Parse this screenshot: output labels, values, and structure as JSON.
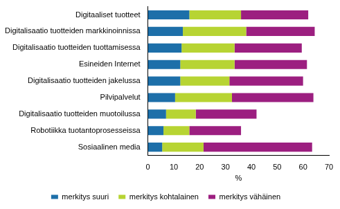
{
  "chart_data": {
    "type": "bar",
    "orientation": "horizontal",
    "stacked": true,
    "grid": false,
    "legend": "bottom",
    "xlabel": "%",
    "categories": [
      "Digitaaliset tuotteet",
      "Digitalisaatio tuotteiden markkinoinnissa",
      "Digitalisaatio tuotteiden tuottamisessa",
      "Esineiden Internet",
      "Digitalisaatio tuotteiden jakelussa",
      "Pilvipalvelut",
      "Digitalisaatio tuotteiden muotoilussa",
      "Robotiikka tuotantoprosesseissa",
      "Sosiaalinen media"
    ],
    "series": [
      {
        "name": "merkitys suuri",
        "color": "#1d6fa9",
        "values": [
          16,
          13.5,
          13,
          12.5,
          12.5,
          10.5,
          7,
          6,
          5.5
        ]
      },
      {
        "name": "merkitys kohtalainen",
        "color": "#b7d433",
        "values": [
          20,
          24.5,
          20.5,
          21,
          19,
          22,
          11.5,
          10,
          16
        ]
      },
      {
        "name": "merkitys vähäinen",
        "color": "#9c1f80",
        "values": [
          26,
          26.5,
          26,
          28,
          28.5,
          31.5,
          23.5,
          20,
          42
        ]
      }
    ],
    "xlim": [
      0,
      70
    ],
    "xticks": [
      0,
      10,
      20,
      30,
      40,
      50,
      60,
      70
    ]
  }
}
